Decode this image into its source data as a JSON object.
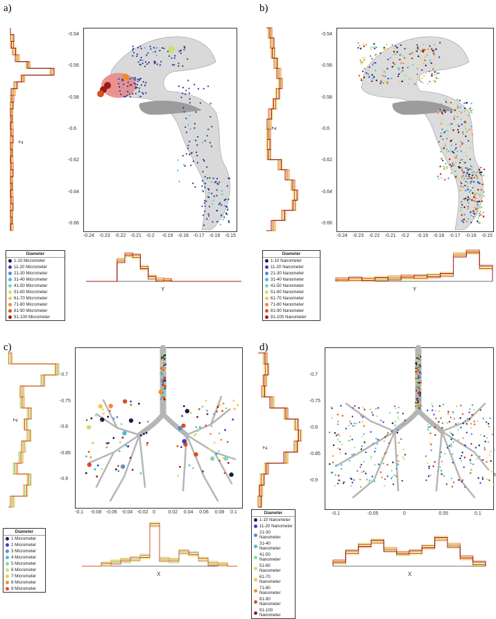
{
  "panel_labels": [
    "a)",
    "b)",
    "c)",
    "d)"
  ],
  "colors": {
    "series_micro": [
      "#1a1a40",
      "#3b3bc4",
      "#4a8fd6",
      "#3fc1d8",
      "#7fd9b0",
      "#c8e36b",
      "#f2c94c",
      "#f08c2e",
      "#d9501e",
      "#9e1a1a"
    ],
    "series_nano": [
      "#1a1a40",
      "#3b3bc4",
      "#4a8fd6",
      "#3fc1d8",
      "#7fd9b0",
      "#c8e36b",
      "#f2c94c",
      "#f08c2e",
      "#d9501e",
      "#9e1a1a"
    ]
  },
  "legends": {
    "a": {
      "title": "Diameter",
      "items": [
        "1-10 Micrometer",
        "11-20 Micrometer",
        "21-30 Micrometer",
        "31-40 Micrometer",
        "41-50 Micrometer",
        "51-60 Micrometer",
        "61-70 Micrometer",
        "71-80 Micrometer",
        "81-90 Micrometer",
        "91-100 Micrometer"
      ]
    },
    "b": {
      "title": "Diameter",
      "items": [
        "1-10 Nanometer",
        "11-20 Nanometer",
        "21-30 Nanometer",
        "31-40 Nanometer",
        "41-50 Nanometer",
        "51-60 Nanometer",
        "61-70 Nanometer",
        "71-80 Nanometer",
        "81-90 Nanometer",
        "91-100 Nanometer"
      ]
    },
    "c": {
      "title": "Diameter",
      "items": [
        "1 Micrometer",
        "2 Micrometer",
        "3 Micrometer",
        "4 Micrometer",
        "5 Micrometer",
        "6 Micrometer",
        "7 Micrometer",
        "8 Micrometer",
        "9 Micrometer"
      ]
    },
    "d": {
      "title": "Diameter",
      "items": [
        "1-10 Nanometer",
        "11-20 Nanometer",
        "21-30 Nanometer",
        "31-40 Nanometer",
        "41-50 Nanometer",
        "51-60 Nanometer",
        "61-70 Nanometer",
        "71-80 Nanometer",
        "81-90 Nanometer",
        "91-100 Nanometer"
      ]
    }
  },
  "chart_data": [
    {
      "panel": "a",
      "type": "scatter",
      "xlabel": "",
      "ylabel": "",
      "xticks": [
        "-0.24",
        "-0.23",
        "-0.22",
        "-0.21",
        "-0.2",
        "-0.19",
        "-0.18",
        "-0.17",
        "-0.16",
        "-0.15"
      ],
      "yticks": [
        "-0.54",
        "-0.56",
        "-0.58",
        "-0.6",
        "-0.62",
        "-0.64",
        "-0.66"
      ],
      "xlim": [
        -0.245,
        -0.145
      ],
      "ylim": [
        -0.675,
        -0.535
      ],
      "side_hist_label": "Z",
      "bottom_hist_label": "Y"
    },
    {
      "panel": "b",
      "type": "scatter",
      "xlabel": "",
      "ylabel": "",
      "xticks": [
        "-0.24",
        "-0.23",
        "-0.22",
        "-0.21",
        "-0.2",
        "-0.19",
        "-0.18",
        "-0.17",
        "-0.16",
        "-0.15"
      ],
      "yticks": [
        "-0.54",
        "-0.56",
        "-0.58",
        "-0.6",
        "-0.62",
        "-0.64",
        "-0.66"
      ],
      "xlim": [
        -0.245,
        -0.145
      ],
      "ylim": [
        -0.675,
        -0.535
      ],
      "side_hist_label": "Z",
      "bottom_hist_label": "Y"
    },
    {
      "panel": "c",
      "type": "scatter",
      "xlabel": "",
      "ylabel": "",
      "xticks": [
        "-0.1",
        "-0.08",
        "-0.06",
        "-0.04",
        "-0.02",
        "0",
        "0.02",
        "0.04",
        "0.06",
        "0.08",
        "0.1"
      ],
      "yticks": [
        "-0.7",
        "-0.75",
        "-0.8",
        "-0.85",
        "-0.9"
      ],
      "xlim": [
        -0.11,
        0.11
      ],
      "ylim": [
        -0.915,
        -0.68
      ],
      "side_hist_label": "Z",
      "bottom_hist_label": "X"
    },
    {
      "panel": "d",
      "type": "scatter",
      "xlabel": "",
      "ylabel": "",
      "xticks": [
        "-0.1",
        "-0.05",
        "0",
        "0.05",
        "0.1"
      ],
      "yticks": [
        "-0.7",
        "-0.75",
        "-0.8",
        "-0.85",
        "-0.9"
      ],
      "xlim": [
        -0.125,
        0.125
      ],
      "ylim": [
        -0.92,
        -0.68
      ],
      "side_hist_label": "Z",
      "bottom_hist_label": "X"
    }
  ]
}
